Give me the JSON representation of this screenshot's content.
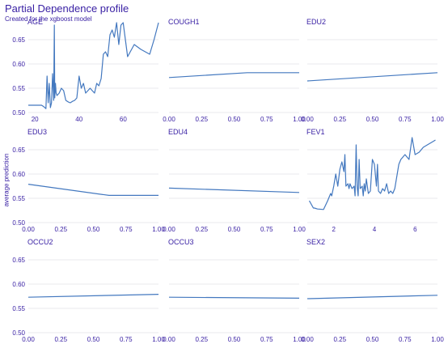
{
  "chart_data": {
    "type": "line",
    "title": "Partial Dependence profile",
    "subtitle": "Created for the xgboost model",
    "ylabel": "average prediction",
    "xlabel": "",
    "ylim": [
      0.5,
      0.68
    ],
    "y_ticks": [
      "0.50",
      "0.55",
      "0.60",
      "0.65"
    ],
    "y_tick_values": [
      0.5,
      0.55,
      0.6,
      0.65
    ],
    "grid": true,
    "legend": "none",
    "line_color": "#4378bf",
    "text_color": "#371ea3",
    "grid_color": "#e8e8ee",
    "panels": [
      {
        "name": "AGE",
        "xlim": [
          17,
          76
        ],
        "x_ticks": [
          "20",
          "40",
          "60"
        ],
        "x_tick_values": [
          20,
          40,
          60
        ],
        "x": [
          17,
          23,
          24,
          25,
          25.5,
          26,
          26.5,
          27,
          27.5,
          28,
          28.5,
          28.8,
          29,
          29.3,
          29.6,
          30,
          31,
          32,
          33,
          34,
          35,
          36,
          37,
          38,
          39,
          40,
          41,
          42,
          43,
          44,
          45,
          46,
          47,
          48,
          49,
          50,
          51,
          52,
          53,
          54,
          55,
          56,
          57,
          58,
          59,
          60,
          62,
          65,
          68,
          72,
          74,
          76
        ],
        "y": [
          0.515,
          0.515,
          0.512,
          0.508,
          0.575,
          0.52,
          0.56,
          0.51,
          0.52,
          0.58,
          0.525,
          0.68,
          0.53,
          0.56,
          0.54,
          0.535,
          0.54,
          0.55,
          0.545,
          0.525,
          0.522,
          0.52,
          0.523,
          0.525,
          0.53,
          0.575,
          0.55,
          0.56,
          0.54,
          0.545,
          0.55,
          0.545,
          0.54,
          0.56,
          0.555,
          0.57,
          0.62,
          0.625,
          0.615,
          0.66,
          0.67,
          0.655,
          0.685,
          0.64,
          0.68,
          0.685,
          0.615,
          0.64,
          0.63,
          0.62,
          0.65,
          0.685
        ]
      },
      {
        "name": "COUGH1",
        "xlim": [
          0,
          1
        ],
        "x_ticks": [
          "0.00",
          "0.25",
          "0.50",
          "0.75",
          "1.00"
        ],
        "x_tick_values": [
          0,
          0.25,
          0.5,
          0.75,
          1
        ],
        "x": [
          0,
          0.6,
          1
        ],
        "y": [
          0.572,
          0.582,
          0.582
        ]
      },
      {
        "name": "EDU2",
        "xlim": [
          0,
          1
        ],
        "x_ticks": [
          "0.00",
          "0.25",
          "0.50",
          "0.75",
          "1.00"
        ],
        "x_tick_values": [
          0,
          0.25,
          0.5,
          0.75,
          1
        ],
        "x": [
          0,
          1
        ],
        "y": [
          0.565,
          0.582
        ]
      },
      {
        "name": "EDU3",
        "xlim": [
          0,
          1
        ],
        "x_ticks": [
          "0.00",
          "0.25",
          "0.50",
          "0.75",
          "1.00"
        ],
        "x_tick_values": [
          0,
          0.25,
          0.5,
          0.75,
          1
        ],
        "x": [
          0,
          0.62,
          1
        ],
        "y": [
          0.579,
          0.556,
          0.556
        ]
      },
      {
        "name": "EDU4",
        "xlim": [
          0,
          1
        ],
        "x_ticks": [
          "0.00",
          "0.25",
          "0.50",
          "0.75",
          "1.00"
        ],
        "x_tick_values": [
          0,
          0.25,
          0.5,
          0.75,
          1
        ],
        "x": [
          0,
          1
        ],
        "y": [
          0.571,
          0.562
        ]
      },
      {
        "name": "FEV1",
        "xlim": [
          0.7,
          7.1
        ],
        "x_ticks": [
          "2",
          "4",
          "6"
        ],
        "x_tick_values": [
          2,
          4,
          6
        ],
        "x": [
          0.8,
          1.0,
          1.05,
          1.2,
          1.5,
          1.7,
          1.85,
          1.9,
          2.0,
          2.1,
          2.2,
          2.3,
          2.4,
          2.5,
          2.55,
          2.6,
          2.7,
          2.75,
          2.8,
          2.9,
          3.0,
          3.05,
          3.1,
          3.15,
          3.2,
          3.25,
          3.3,
          3.4,
          3.45,
          3.5,
          3.55,
          3.6,
          3.7,
          3.8,
          3.9,
          4.0,
          4.1,
          4.15,
          4.2,
          4.3,
          4.4,
          4.5,
          4.6,
          4.7,
          4.8,
          4.9,
          5.0,
          5.2,
          5.3,
          5.5,
          5.7,
          5.85,
          6.0,
          6.2,
          6.4,
          6.6,
          6.8,
          7.0
        ],
        "y": [
          0.545,
          0.53,
          0.53,
          0.528,
          0.527,
          0.545,
          0.56,
          0.555,
          0.575,
          0.6,
          0.575,
          0.61,
          0.625,
          0.605,
          0.64,
          0.575,
          0.58,
          0.57,
          0.58,
          0.57,
          0.575,
          0.555,
          0.66,
          0.575,
          0.555,
          0.63,
          0.57,
          0.575,
          0.555,
          0.58,
          0.565,
          0.59,
          0.56,
          0.565,
          0.63,
          0.62,
          0.575,
          0.62,
          0.565,
          0.56,
          0.57,
          0.565,
          0.58,
          0.56,
          0.565,
          0.56,
          0.57,
          0.62,
          0.63,
          0.64,
          0.63,
          0.675,
          0.64,
          0.645,
          0.655,
          0.66,
          0.665,
          0.67
        ]
      },
      {
        "name": "OCCU2",
        "xlim": [
          0,
          1
        ],
        "x_ticks": [
          "0.00",
          "0.25",
          "0.50",
          "0.75",
          "1.00"
        ],
        "x_tick_values": [
          0,
          0.25,
          0.5,
          0.75,
          1
        ],
        "x": [
          0,
          1
        ],
        "y": [
          0.573,
          0.579
        ]
      },
      {
        "name": "OCCU3",
        "xlim": [
          0,
          1
        ],
        "x_ticks": [
          "0.00",
          "0.25",
          "0.50",
          "0.75",
          "1.00"
        ],
        "x_tick_values": [
          0,
          0.25,
          0.5,
          0.75,
          1
        ],
        "x": [
          0,
          1
        ],
        "y": [
          0.573,
          0.571
        ]
      },
      {
        "name": "SEX2",
        "xlim": [
          0,
          1
        ],
        "x_ticks": [
          "0.00",
          "0.25",
          "0.50",
          "0.75",
          "1.00"
        ],
        "x_tick_values": [
          0,
          0.25,
          0.5,
          0.75,
          1
        ],
        "x": [
          0,
          1
        ],
        "y": [
          0.57,
          0.577
        ]
      }
    ]
  }
}
